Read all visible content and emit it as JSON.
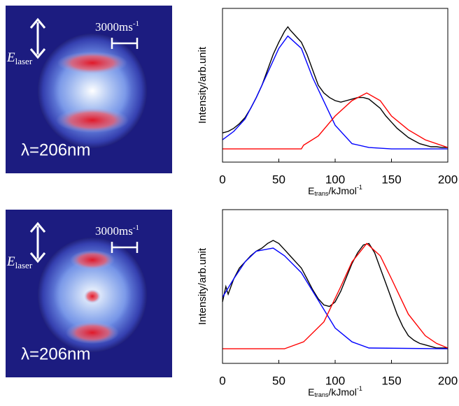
{
  "images": [
    {
      "scale_label": "3000ms",
      "scale_exponent": "-1",
      "field_label": "E",
      "field_subscript": "laser",
      "wavelength": "λ=206nm"
    },
    {
      "scale_label": "3000ms",
      "scale_exponent": "-1",
      "field_label": "E",
      "field_subscript": "laser",
      "wavelength": "λ=206nm"
    }
  ],
  "chart_data": [
    {
      "type": "line",
      "y_label": "Intensity/arb.unit",
      "x_label": "E",
      "x_label_subscript": "trans",
      "x_label_unit": "/kJmol",
      "x_label_exponent": "-1",
      "xlim": [
        0,
        200
      ],
      "xticks": [
        0,
        50,
        100,
        150,
        200
      ],
      "ylim": [
        0,
        1
      ],
      "series": [
        {
          "color": "#000000",
          "x": [
            0,
            5,
            10,
            15,
            20,
            25,
            30,
            35,
            40,
            45,
            50,
            55,
            58,
            60,
            65,
            70,
            75,
            80,
            85,
            90,
            95,
            100,
            105,
            110,
            115,
            120,
            125,
            130,
            135,
            140,
            145,
            150,
            155,
            160,
            165,
            170,
            175,
            180,
            185,
            190,
            195,
            200
          ],
          "values": [
            0.19,
            0.2,
            0.22,
            0.25,
            0.29,
            0.35,
            0.42,
            0.5,
            0.6,
            0.7,
            0.78,
            0.85,
            0.88,
            0.86,
            0.82,
            0.78,
            0.7,
            0.6,
            0.5,
            0.45,
            0.42,
            0.4,
            0.39,
            0.4,
            0.41,
            0.42,
            0.42,
            0.41,
            0.38,
            0.35,
            0.3,
            0.26,
            0.22,
            0.19,
            0.16,
            0.14,
            0.12,
            0.11,
            0.1,
            0.1,
            0.095,
            0.095
          ]
        },
        {
          "color": "#0000ff",
          "x": [
            0,
            10,
            20,
            30,
            40,
            50,
            58,
            70,
            80,
            100,
            115,
            130,
            150,
            200
          ],
          "values": [
            0.145,
            0.2,
            0.28,
            0.42,
            0.58,
            0.74,
            0.82,
            0.74,
            0.55,
            0.24,
            0.12,
            0.095,
            0.086,
            0.086
          ]
        },
        {
          "color": "#ff0000",
          "x": [
            0,
            70,
            72,
            85,
            100,
            115,
            128,
            140,
            150,
            165,
            180,
            200
          ],
          "values": [
            0.086,
            0.086,
            0.11,
            0.17,
            0.3,
            0.4,
            0.45,
            0.4,
            0.3,
            0.21,
            0.145,
            0.095
          ]
        }
      ]
    },
    {
      "type": "line",
      "y_label": "Intensity/arb.unit",
      "x_label": "E",
      "x_label_subscript": "trans",
      "x_label_unit": "/kJmol",
      "x_label_exponent": "-1",
      "xlim": [
        0,
        200
      ],
      "xticks": [
        0,
        50,
        100,
        150,
        200
      ],
      "ylim": [
        0,
        1
      ],
      "series": [
        {
          "color": "#000000",
          "x": [
            0,
            3,
            5,
            10,
            15,
            20,
            25,
            30,
            35,
            40,
            45,
            50,
            55,
            60,
            65,
            70,
            75,
            80,
            85,
            90,
            95,
            100,
            105,
            110,
            115,
            120,
            125,
            130,
            135,
            140,
            145,
            150,
            155,
            160,
            165,
            170,
            175,
            180,
            185,
            190,
            195,
            200
          ],
          "values": [
            0.4,
            0.5,
            0.45,
            0.55,
            0.62,
            0.66,
            0.7,
            0.73,
            0.75,
            0.78,
            0.8,
            0.78,
            0.74,
            0.7,
            0.66,
            0.62,
            0.55,
            0.48,
            0.42,
            0.38,
            0.37,
            0.4,
            0.47,
            0.56,
            0.65,
            0.72,
            0.77,
            0.78,
            0.72,
            0.62,
            0.52,
            0.42,
            0.32,
            0.24,
            0.18,
            0.15,
            0.13,
            0.12,
            0.11,
            0.1,
            0.1,
            0.1
          ]
        },
        {
          "color": "#0000ff",
          "x": [
            0,
            10,
            20,
            30,
            45,
            55,
            70,
            85,
            100,
            115,
            130,
            200
          ],
          "values": [
            0.43,
            0.55,
            0.66,
            0.73,
            0.75,
            0.7,
            0.59,
            0.41,
            0.23,
            0.14,
            0.1,
            0.095
          ]
        },
        {
          "color": "#ff0000",
          "x": [
            0,
            55,
            72,
            90,
            105,
            115,
            128,
            140,
            150,
            165,
            180,
            190,
            200
          ],
          "values": [
            0.095,
            0.095,
            0.14,
            0.27,
            0.5,
            0.66,
            0.78,
            0.7,
            0.55,
            0.32,
            0.18,
            0.13,
            0.1
          ]
        }
      ]
    }
  ]
}
